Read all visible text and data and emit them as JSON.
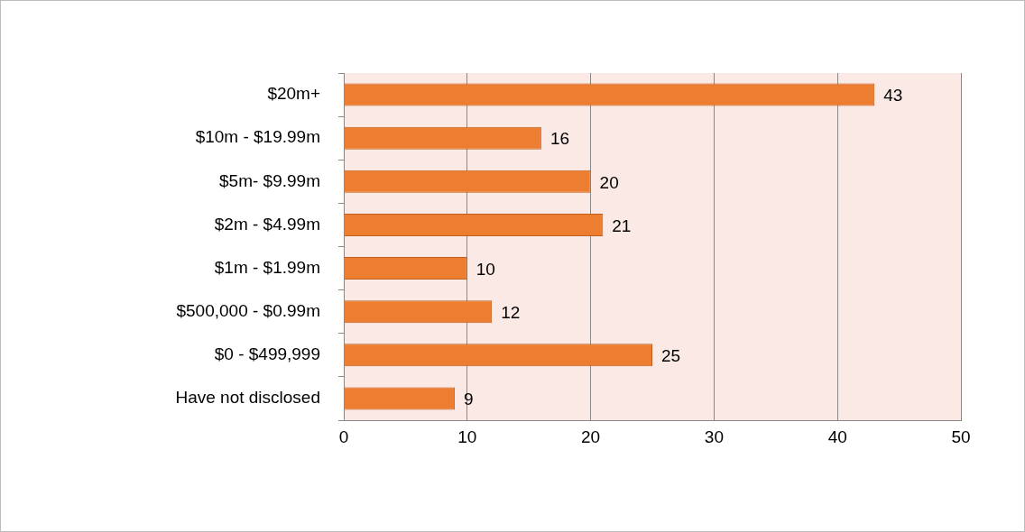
{
  "chart_data": {
    "type": "bar",
    "orientation": "horizontal",
    "categories": [
      "$20m+",
      "$10m - $19.99m",
      "$5m- $9.99m",
      "$2m - $4.99m",
      "$1m - $1.99m",
      "$500,000 - $0.99m",
      "$0 - $499,999",
      "Have not disclosed"
    ],
    "values": [
      43,
      16,
      20,
      21,
      10,
      12,
      25,
      9
    ],
    "color": "#ed7d31",
    "xlim": [
      0,
      50
    ],
    "xticks": [
      0,
      10,
      20,
      30,
      40,
      50
    ],
    "grid": "x",
    "data_labels": true,
    "legend": false
  }
}
